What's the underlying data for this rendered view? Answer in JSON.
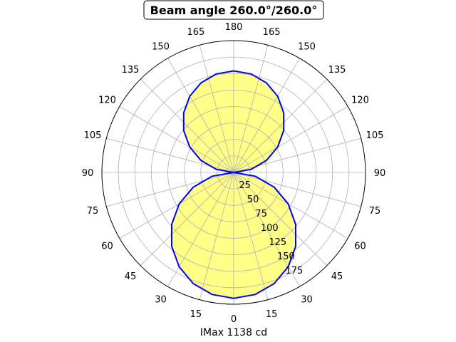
{
  "chart_data": {
    "type": "polar",
    "title": "Beam angle 260.0°/260.0°",
    "xlabel": "IMax 1138 cd",
    "angle_ticks_left": [
      0,
      15,
      30,
      45,
      60,
      75,
      90,
      105,
      120,
      135,
      150,
      165,
      180
    ],
    "angle_ticks_right": [
      0,
      15,
      30,
      45,
      60,
      75,
      90,
      105,
      120,
      135,
      150,
      165,
      180
    ],
    "radial_ticks": [
      25,
      50,
      75,
      100,
      125,
      150,
      175
    ],
    "rlim": [
      0,
      200
    ],
    "grid": true,
    "fill_color": "#ffff88",
    "line_color": "#0000ff",
    "series": [
      {
        "angles": [
          0,
          10,
          20,
          30,
          40,
          50,
          60,
          70,
          80,
          90
        ],
        "values": [
          191,
          188.1,
          179.5,
          165.4,
          146.3,
          122.8,
          95.5,
          65.3,
          33.2,
          0
        ]
      },
      {
        "angles": [
          90,
          100,
          110,
          120,
          130,
          140,
          150,
          160,
          170,
          180
        ],
        "values": [
          0,
          26.7,
          52.7,
          77,
          99,
          118,
          133.4,
          144.7,
          151.7,
          154
        ]
      }
    ]
  }
}
